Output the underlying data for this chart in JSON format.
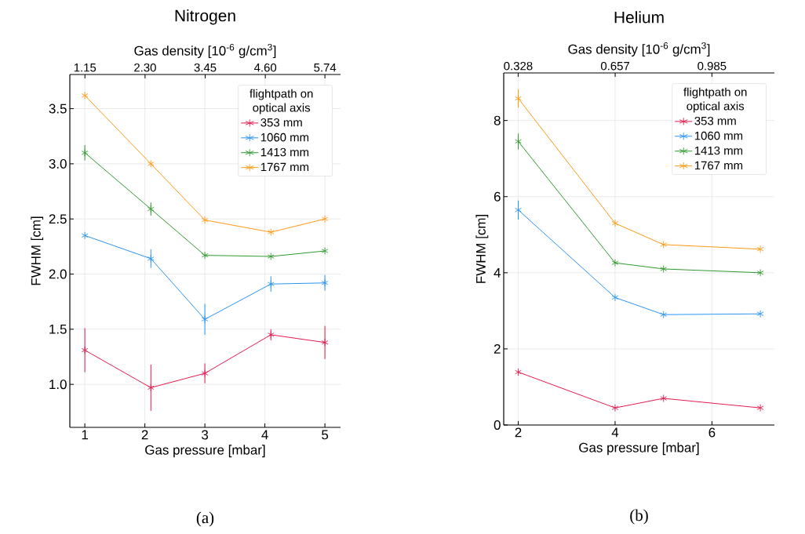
{
  "chart_data": [
    {
      "type": "line",
      "title": "Nitrogen",
      "xlabel": "Gas pressure [mbar]",
      "ylabel": "FWHM [cm]",
      "x2label": "Gas density [10$^{-6}$ g/cm$^{3}$]",
      "legend_title": "flightpath on optical axis",
      "legend": "top right",
      "grid": true,
      "marker": "cross",
      "line_style": "solid",
      "x": [
        1,
        2.1,
        3,
        4.1,
        5
      ],
      "xlim": [
        0.75,
        5.26
      ],
      "xticks": [
        1,
        2,
        3,
        4,
        5
      ],
      "ylim": [
        0.61,
        3.81
      ],
      "yticks": [
        {
          "value": 1.0,
          "label": "1.0"
        },
        1.5,
        {
          "value": 2.0,
          "label": "2.0"
        },
        2.5,
        {
          "value": 3.0,
          "label": "3.0"
        },
        3.5
      ],
      "x2lim": [
        0.861,
        6.038
      ],
      "x2ticks": [
        1.15,
        {
          "value": 2.3,
          "label": "2.30"
        },
        3.45,
        {
          "value": 4.6,
          "label": "4.60"
        },
        5.74
      ],
      "series": [
        {
          "name": "353 mm",
          "color": "#e6194b",
          "values": [
            1.31,
            0.97,
            1.1,
            1.45,
            1.38
          ],
          "errors": [
            0.2,
            0.21,
            0.09,
            0.05,
            0.15
          ]
        },
        {
          "name": "1060 mm",
          "color": "#2a94f4",
          "values": [
            2.35,
            2.14,
            1.59,
            1.91,
            1.92
          ],
          "errors": [
            null,
            0.085,
            0.14,
            0.07,
            0.07
          ]
        },
        {
          "name": "1413 mm",
          "color": "#2f9a2f",
          "values": [
            3.1,
            2.59,
            2.17,
            2.16,
            2.21
          ],
          "errors": [
            0.07,
            0.06,
            null,
            null,
            null
          ]
        },
        {
          "name": "1767 mm",
          "color": "#ff9915",
          "values": [
            3.62,
            3.0,
            2.49,
            2.38,
            2.5
          ]
        }
      ],
      "annotations": [
        "(a)"
      ]
    },
    {
      "type": "line",
      "title": "Helium",
      "xlabel": "Gas pressure [mbar]",
      "ylabel": "FWHM [cm]",
      "x2label": "Gas density [10$^{-6}$ g/cm$^{3}$]",
      "legend_title": "flightpath on optical axis",
      "legend": "top right",
      "grid": true,
      "marker": "cross",
      "line_style": "solid",
      "x": [
        2,
        4,
        5,
        7
      ],
      "xlim": [
        1.7,
        7.29
      ],
      "xticks": [
        2,
        4,
        6
      ],
      "ylim": [
        0,
        9.25
      ],
      "yticks": [
        0,
        2,
        4,
        6,
        8
      ],
      "x2lim": [
        0.279,
        1.197
      ],
      "x2ticks": [
        0.328,
        0.657,
        0.985
      ],
      "series": [
        {
          "name": "353 mm",
          "color": "#e6194b",
          "values": [
            1.39,
            0.45,
            0.7,
            0.45
          ]
        },
        {
          "name": "1060 mm",
          "color": "#2a94f4",
          "values": [
            5.65,
            3.35,
            2.9,
            2.92
          ],
          "errors": [
            0.25,
            null,
            null,
            null
          ]
        },
        {
          "name": "1413 mm",
          "color": "#2f9a2f",
          "values": [
            7.45,
            4.26,
            4.1,
            4.0
          ],
          "errors": [
            0.21,
            null,
            null,
            null
          ]
        },
        {
          "name": "1767 mm",
          "color": "#ff9915",
          "values": [
            8.58,
            5.3,
            4.74,
            4.62
          ],
          "errors": [
            0.24,
            null,
            null,
            null
          ]
        }
      ],
      "annotations": [
        "(b)"
      ]
    }
  ]
}
